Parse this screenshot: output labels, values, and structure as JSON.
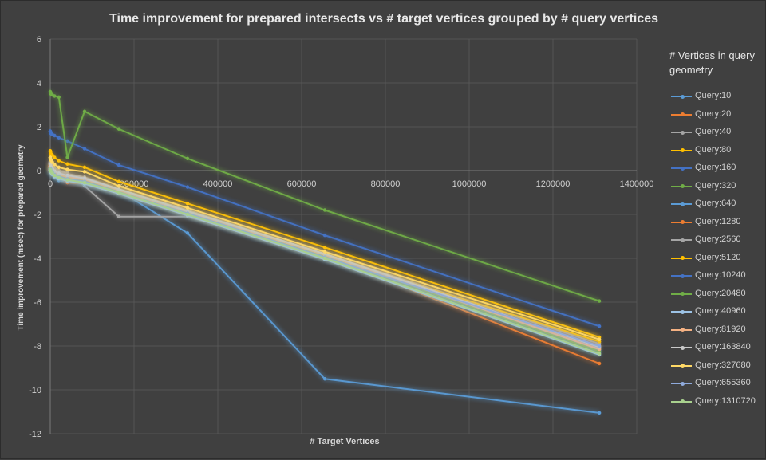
{
  "chart_data": {
    "type": "line",
    "title": "Time improvement for prepared intersects vs # target vertices grouped by # query vertices",
    "xlabel": "# Target Vertices",
    "ylabel": "Time improvement  (msec) for prepared  geometry",
    "xlim": [
      0,
      1400000
    ],
    "ylim": [
      -12,
      6
    ],
    "x_ticks": [
      "0",
      "200000",
      "400000",
      "600000",
      "800000",
      "1000000",
      "1200000",
      "1400000"
    ],
    "y_ticks": [
      "6",
      "4",
      "2",
      "0",
      "-2",
      "-4",
      "-6",
      "-8",
      "-10",
      "-12"
    ],
    "legend_title": "# Vertices in query geometry",
    "legend_position": "right",
    "grid": true,
    "x": [
      10,
      20,
      40,
      80,
      160,
      320,
      640,
      1280,
      2560,
      5120,
      10240,
      20480,
      40960,
      81920,
      163840,
      327680,
      655360,
      1310720
    ],
    "series": [
      {
        "name": "Query:10",
        "color": "#5b9bd5",
        "values": [
          0,
          0,
          0,
          0,
          -0.02,
          -0.03,
          -0.05,
          -0.08,
          -0.12,
          -0.2,
          -0.33,
          -0.45,
          -0.5,
          -0.55,
          -0.9,
          -2.85,
          -9.5,
          -11.05
        ]
      },
      {
        "name": "Query:20",
        "color": "#ed7d31",
        "values": [
          0.25,
          0.25,
          0.24,
          0.24,
          0.23,
          0.21,
          0.18,
          0.14,
          0.08,
          0.0,
          -0.12,
          -0.3,
          -0.55,
          -0.6,
          -0.95,
          -1.9,
          -3.9,
          -8.8
        ]
      },
      {
        "name": "Query:40",
        "color": "#a5a5a5",
        "values": [
          0.4,
          0.4,
          0.39,
          0.39,
          0.38,
          0.36,
          0.33,
          0.3,
          0.25,
          0.2,
          0.12,
          0.0,
          -0.1,
          -0.7,
          -2.1,
          -2.1,
          -3.8,
          -8.1
        ]
      },
      {
        "name": "Query:80",
        "color": "#ffc000",
        "values": [
          0.9,
          0.9,
          0.89,
          0.88,
          0.87,
          0.85,
          0.82,
          0.78,
          0.74,
          0.7,
          0.6,
          0.45,
          0.3,
          0.15,
          -0.5,
          -1.5,
          -3.5,
          -7.6
        ]
      },
      {
        "name": "Query:160",
        "color": "#4472c4",
        "values": [
          1.8,
          1.8,
          1.79,
          1.78,
          1.77,
          1.75,
          1.72,
          1.7,
          1.68,
          1.65,
          1.6,
          1.5,
          1.35,
          1.0,
          0.25,
          -0.75,
          -2.95,
          -7.1
        ]
      },
      {
        "name": "Query:320",
        "color": "#70ad47",
        "values": [
          3.6,
          3.6,
          3.59,
          3.58,
          3.57,
          3.55,
          3.52,
          3.5,
          3.48,
          3.45,
          3.4,
          3.35,
          0.6,
          2.7,
          1.9,
          0.55,
          -1.8,
          -5.95
        ]
      },
      {
        "name": "Query:640",
        "color": "#5b9bd5",
        "values": [
          0.0,
          0.0,
          0.0,
          0.0,
          -0.01,
          -0.02,
          -0.04,
          -0.06,
          -0.1,
          -0.15,
          -0.25,
          -0.35,
          -0.45,
          -0.6,
          -1.05,
          -2.0,
          -4.0,
          -8.2
        ]
      },
      {
        "name": "Query:1280",
        "color": "#ed7d31",
        "values": [
          0.2,
          0.2,
          0.2,
          0.19,
          0.19,
          0.18,
          0.16,
          0.13,
          0.08,
          0.02,
          -0.1,
          -0.2,
          -0.35,
          -0.45,
          -0.95,
          -1.95,
          -3.95,
          -8.0
        ]
      },
      {
        "name": "Query:2560",
        "color": "#a5a5a5",
        "values": [
          0.35,
          0.35,
          0.34,
          0.34,
          0.33,
          0.31,
          0.28,
          0.25,
          0.2,
          0.15,
          0.05,
          -0.05,
          -0.15,
          -0.3,
          -0.85,
          -1.8,
          -3.8,
          -7.9
        ]
      },
      {
        "name": "Query:5120",
        "color": "#ffc000",
        "values": [
          0.15,
          0.15,
          0.15,
          0.14,
          0.14,
          0.13,
          0.11,
          0.08,
          0.04,
          -0.02,
          -0.12,
          -0.22,
          -0.32,
          -0.4,
          -0.9,
          -1.9,
          -3.9,
          -7.8
        ]
      },
      {
        "name": "Query:10240",
        "color": "#4472c4",
        "values": [
          0.05,
          0.05,
          0.05,
          0.04,
          0.04,
          0.03,
          0.01,
          -0.02,
          -0.06,
          -0.12,
          -0.22,
          -0.32,
          -0.42,
          -0.55,
          -1.0,
          -2.0,
          -4.0,
          -8.3
        ]
      },
      {
        "name": "Query:20480",
        "color": "#70ad47",
        "values": [
          0.1,
          0.1,
          0.1,
          0.09,
          0.09,
          0.08,
          0.06,
          0.03,
          -0.01,
          -0.07,
          -0.17,
          -0.27,
          -0.37,
          -0.5,
          -0.95,
          -1.95,
          -3.9,
          -8.25
        ]
      },
      {
        "name": "Query:40960",
        "color": "#9dc3e6",
        "values": [
          0.0,
          0.0,
          0.0,
          0.0,
          -0.01,
          -0.02,
          -0.04,
          -0.07,
          -0.11,
          -0.17,
          -0.27,
          -0.37,
          -0.47,
          -0.6,
          -1.05,
          -2.05,
          -4.05,
          -8.4
        ]
      },
      {
        "name": "Query:81920",
        "color": "#f4b183",
        "values": [
          0.2,
          0.2,
          0.19,
          0.19,
          0.18,
          0.17,
          0.15,
          0.12,
          0.07,
          0.01,
          -0.09,
          -0.19,
          -0.29,
          -0.4,
          -0.9,
          -1.9,
          -3.85,
          -8.15
        ]
      },
      {
        "name": "Query:163840",
        "color": "#c9c9c9",
        "values": [
          0.3,
          0.3,
          0.29,
          0.29,
          0.28,
          0.26,
          0.24,
          0.2,
          0.15,
          0.08,
          -0.02,
          -0.12,
          -0.22,
          -0.35,
          -0.85,
          -1.85,
          -3.8,
          -8.05
        ]
      },
      {
        "name": "Query:327680",
        "color": "#ffd966",
        "values": [
          0.6,
          0.6,
          0.59,
          0.59,
          0.58,
          0.56,
          0.53,
          0.5,
          0.45,
          0.38,
          0.28,
          0.15,
          0.05,
          -0.05,
          -0.7,
          -1.7,
          -3.7,
          -7.7
        ]
      },
      {
        "name": "Query:655360",
        "color": "#8faadc",
        "values": [
          0.1,
          0.1,
          0.1,
          0.09,
          0.09,
          0.08,
          0.06,
          0.03,
          -0.02,
          -0.08,
          -0.18,
          -0.28,
          -0.38,
          -0.5,
          -1.0,
          -1.95,
          -3.95,
          -8.0
        ]
      },
      {
        "name": "Query:1310720",
        "color": "#a9d18e",
        "values": [
          0.05,
          0.05,
          0.05,
          0.04,
          0.04,
          0.03,
          0.01,
          -0.02,
          -0.06,
          -0.12,
          -0.22,
          -0.32,
          -0.42,
          -0.55,
          -1.0,
          -2.0,
          -4.0,
          -8.35
        ]
      }
    ]
  }
}
